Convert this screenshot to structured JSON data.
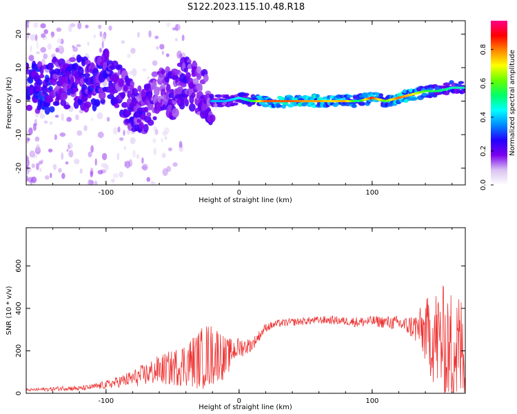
{
  "title": "S122.2023.115.10.48.R18",
  "chart_data": [
    {
      "type": "heatmap",
      "xlabel": "Height of straight line (km)",
      "ylabel": "Frequency (Hz)",
      "xlim": [
        -160,
        170
      ],
      "ylim": [
        -25,
        24
      ],
      "x_ticks": [
        -100,
        0,
        100
      ],
      "y_ticks": [
        -20,
        -10,
        0,
        10,
        20
      ],
      "colorbar": {
        "label": "Normalized spectral amplitude",
        "range": [
          0.0,
          0.97
        ],
        "ticks": [
          "0.0",
          "0.2",
          "0.4",
          "0.6",
          "0.8"
        ],
        "tick_values": [
          0.0,
          0.2,
          0.4,
          0.6,
          0.8
        ],
        "colors": [
          "#ffffff",
          "#d9c2f2",
          "#7b00ee",
          "#2200ff",
          "#0088ff",
          "#00ffff",
          "#00ff66",
          "#66ff00",
          "#ffff00",
          "#ff8800",
          "#ff0000",
          "#ff0088"
        ]
      },
      "ridge": [
        {
          "x": -140,
          "y": 6,
          "a": 0.4
        },
        {
          "x": -130,
          "y": 5,
          "a": 0.45
        },
        {
          "x": -120,
          "y": 6,
          "a": 0.45
        },
        {
          "x": -110,
          "y": 4,
          "a": 0.45
        },
        {
          "x": -100,
          "y": 8,
          "a": 0.45
        },
        {
          "x": -90,
          "y": 4,
          "a": 0.4
        },
        {
          "x": -80,
          "y": -2,
          "a": 0.4
        },
        {
          "x": -70,
          "y": -3,
          "a": 0.4
        },
        {
          "x": -60,
          "y": 3,
          "a": 0.35
        },
        {
          "x": -50,
          "y": 2,
          "a": 0.4
        },
        {
          "x": -40,
          "y": 6,
          "a": 0.4
        },
        {
          "x": -30,
          "y": 3,
          "a": 0.35
        },
        {
          "x": -20,
          "y": 0,
          "a": 0.4
        },
        {
          "x": -10,
          "y": 0,
          "a": 0.4
        },
        {
          "x": 0,
          "y": 1,
          "a": 0.45
        },
        {
          "x": 10,
          "y": 0,
          "a": 0.55
        },
        {
          "x": 20,
          "y": 0,
          "a": 0.85
        },
        {
          "x": 30,
          "y": 0,
          "a": 0.85
        },
        {
          "x": 40,
          "y": 0,
          "a": 0.85
        },
        {
          "x": 50,
          "y": 0,
          "a": 0.8
        },
        {
          "x": 60,
          "y": 0,
          "a": 0.8
        },
        {
          "x": 70,
          "y": 0,
          "a": 0.75
        },
        {
          "x": 80,
          "y": 0,
          "a": 0.8
        },
        {
          "x": 90,
          "y": 0,
          "a": 0.5
        },
        {
          "x": 100,
          "y": 1,
          "a": 0.9
        },
        {
          "x": 110,
          "y": 0,
          "a": 0.6
        },
        {
          "x": 120,
          "y": 1,
          "a": 0.85
        },
        {
          "x": 130,
          "y": 2,
          "a": 0.75
        },
        {
          "x": 140,
          "y": 3,
          "a": 0.6
        },
        {
          "x": 150,
          "y": 3,
          "a": 0.55
        },
        {
          "x": 160,
          "y": 4,
          "a": 0.5
        },
        {
          "x": 170,
          "y": 4,
          "a": 0.5
        }
      ]
    },
    {
      "type": "line",
      "xlabel": "Height of straight line (km)",
      "ylabel": "SNR (10 * v/v)",
      "xlim": [
        -160,
        170
      ],
      "ylim": [
        0,
        780
      ],
      "x_ticks": [
        -100,
        0,
        100
      ],
      "y_ticks": [
        0,
        200,
        400,
        600
      ],
      "color": "#ee3333",
      "series": [
        {
          "x": [
            -160,
            -150,
            -140,
            -130,
            -120,
            -110,
            -100,
            -90,
            -80,
            -70,
            -60,
            -50,
            -40,
            -30,
            -25,
            -20,
            -15,
            -10,
            -5,
            0,
            5,
            10,
            15,
            20,
            30,
            40,
            50,
            60,
            70,
            80,
            90,
            100,
            110,
            120,
            125,
            130,
            135,
            140,
            145,
            150,
            155,
            160,
            165,
            170
          ],
          "values": [
            15,
            18,
            20,
            25,
            22,
            30,
            40,
            55,
            70,
            90,
            110,
            120,
            140,
            160,
            175,
            180,
            190,
            160,
            200,
            215,
            220,
            230,
            270,
            310,
            330,
            335,
            340,
            345,
            345,
            340,
            335,
            340,
            335,
            330,
            320,
            315,
            305,
            290,
            270,
            250,
            230,
            210,
            200,
            190
          ],
          "noise": [
            6,
            8,
            10,
            12,
            12,
            14,
            20,
            28,
            40,
            55,
            70,
            85,
            110,
            140,
            160,
            150,
            130,
            100,
            60,
            50,
            40,
            30,
            25,
            20,
            18,
            18,
            18,
            18,
            20,
            20,
            25,
            25,
            30,
            35,
            40,
            60,
            90,
            150,
            220,
            260,
            280,
            300,
            290,
            280
          ]
        }
      ]
    }
  ]
}
